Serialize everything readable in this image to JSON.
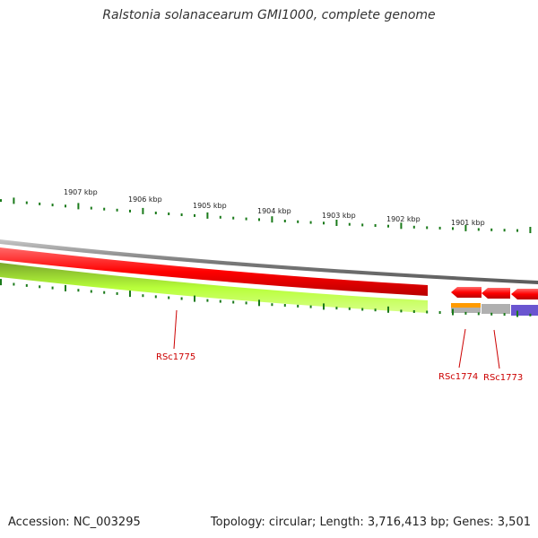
{
  "title": "Ralstonia solanacearum GMI1000, complete genome",
  "accession": "Accession: NC_003295",
  "topology": "Topology: circular; Length: 3,716,413 bp; Genes: 3,501",
  "scale_labels": [
    "1907 kbp",
    "1906 kbp",
    "1905 kbp",
    "1904 kbp",
    "1903 kbp",
    "1902 kbp",
    "1901 kbp"
  ],
  "gene_labels": [
    "RSc1775",
    "RSc1774",
    "RSc1773"
  ],
  "colors": {
    "tick": "#1a7a1a",
    "backbone": "#808080",
    "cds_forward": "#ff0000",
    "gene_forward": "#88d41a",
    "gene_orange": "#ff9a00",
    "gene_gray": "#b0b0b0",
    "gene_blue": "#6a55d0",
    "label": "#cc0000"
  }
}
